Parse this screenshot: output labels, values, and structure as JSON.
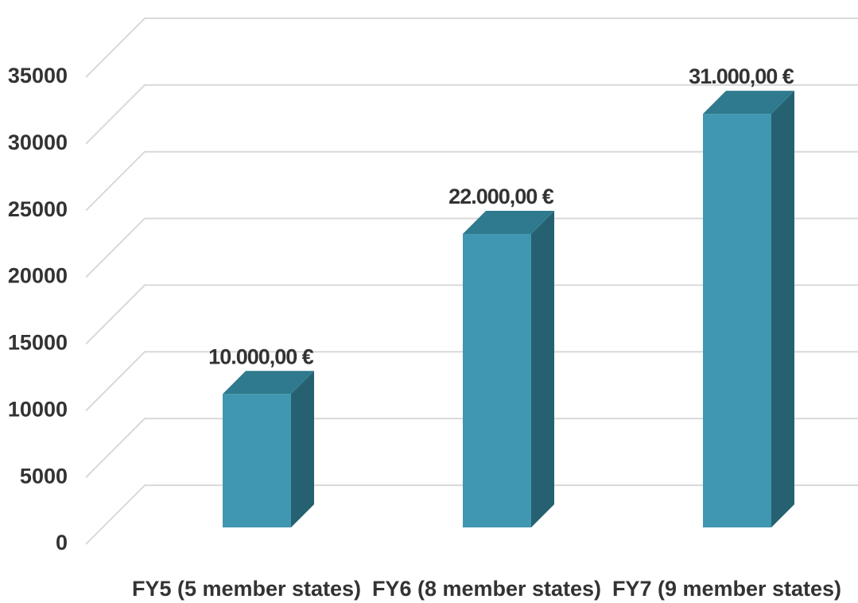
{
  "chart_data": {
    "type": "bar3d",
    "categories": [
      "FY5 (5 member states)",
      "FY6 (8 member states)",
      "FY7 (9 member states)"
    ],
    "values": [
      10000,
      22000,
      31000
    ],
    "value_labels": [
      "10.000,00 €",
      "22.000,00 €",
      "31.000,00 €"
    ],
    "color": "#4097b1",
    "ylim": [
      0,
      35000
    ],
    "yticks": [
      0,
      5000,
      10000,
      15000,
      20000,
      25000,
      30000,
      35000
    ],
    "grid": true
  }
}
